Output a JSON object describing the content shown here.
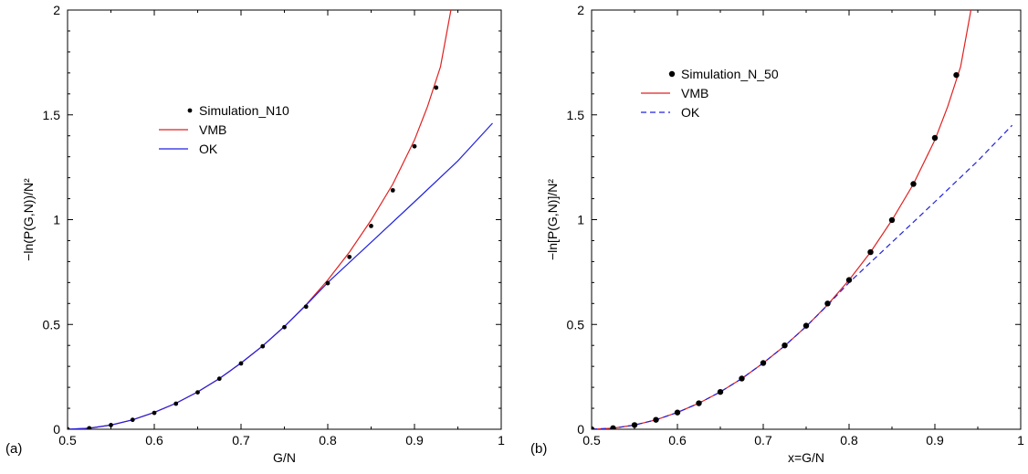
{
  "chart_data": [
    {
      "type": "line",
      "panel_label": "(a)",
      "xlabel": "G/N",
      "ylabel": "−ln(P(G,N))/N²",
      "xlim": [
        0.5,
        1.0
      ],
      "ylim": [
        0,
        2
      ],
      "x_ticks": [
        "0.5",
        "0.6",
        "0.7",
        "0.8",
        "0.9",
        "1"
      ],
      "y_ticks": [
        "0",
        "0.5",
        "1",
        "1.5",
        "2"
      ],
      "legend_placement": "upper-middle",
      "series": [
        {
          "name": "Simulation_N10",
          "kind": "points",
          "color": "#000000",
          "x": [
            0.5,
            0.525,
            0.55,
            0.575,
            0.6,
            0.625,
            0.65,
            0.675,
            0.7,
            0.725,
            0.75,
            0.775,
            0.8,
            0.825,
            0.85,
            0.875,
            0.9,
            0.925
          ],
          "y": [
            0.0,
            0.005,
            0.02,
            0.045,
            0.078,
            0.122,
            0.176,
            0.241,
            0.314,
            0.396,
            0.487,
            0.585,
            0.697,
            0.822,
            0.97,
            1.14,
            1.35,
            1.63
          ]
        },
        {
          "name": "VMB",
          "kind": "line",
          "color": "#e02020",
          "x": [
            0.5,
            0.525,
            0.55,
            0.575,
            0.6,
            0.625,
            0.65,
            0.675,
            0.7,
            0.725,
            0.75,
            0.775,
            0.8,
            0.825,
            0.85,
            0.875,
            0.9,
            0.915,
            0.93,
            0.942
          ],
          "y": [
            0.0,
            0.005,
            0.02,
            0.045,
            0.08,
            0.124,
            0.178,
            0.242,
            0.316,
            0.398,
            0.49,
            0.594,
            0.712,
            0.845,
            0.998,
            1.17,
            1.38,
            1.54,
            1.73,
            2.0
          ]
        },
        {
          "name": "OK",
          "kind": "line",
          "color": "#2020e0",
          "x": [
            0.5,
            0.525,
            0.55,
            0.575,
            0.6,
            0.625,
            0.65,
            0.675,
            0.7,
            0.725,
            0.75,
            0.775,
            0.8,
            0.85,
            0.9,
            0.95,
            0.99
          ],
          "y": [
            0.0,
            0.005,
            0.02,
            0.045,
            0.08,
            0.124,
            0.178,
            0.242,
            0.316,
            0.398,
            0.49,
            0.592,
            0.7,
            0.892,
            1.085,
            1.28,
            1.46
          ]
        }
      ]
    },
    {
      "type": "line",
      "panel_label": "(b)",
      "xlabel": "x=G/N",
      "ylabel": "−ln[P(G,N)]/N²",
      "xlim": [
        0.5,
        1.0
      ],
      "ylim": [
        0,
        2
      ],
      "x_ticks": [
        "0.5",
        "0.6",
        "0.7",
        "0.8",
        "0.9",
        "1"
      ],
      "y_ticks": [
        "0",
        "0.5",
        "1",
        "1.5",
        "2"
      ],
      "legend_placement": "top-left",
      "series": [
        {
          "name": "Simulation_N_50",
          "kind": "points",
          "color": "#000000",
          "x": [
            0.5,
            0.525,
            0.55,
            0.575,
            0.6,
            0.625,
            0.65,
            0.675,
            0.7,
            0.725,
            0.75,
            0.775,
            0.8,
            0.825,
            0.85,
            0.875,
            0.9,
            0.925
          ],
          "y": [
            0.0,
            0.005,
            0.02,
            0.045,
            0.08,
            0.124,
            0.178,
            0.242,
            0.316,
            0.4,
            0.494,
            0.6,
            0.712,
            0.845,
            0.998,
            1.17,
            1.39,
            1.69
          ]
        },
        {
          "name": "VMB",
          "kind": "line",
          "color": "#e02020",
          "x": [
            0.5,
            0.525,
            0.55,
            0.575,
            0.6,
            0.625,
            0.65,
            0.675,
            0.7,
            0.725,
            0.75,
            0.775,
            0.8,
            0.825,
            0.85,
            0.875,
            0.9,
            0.915,
            0.93,
            0.942
          ],
          "y": [
            0.0,
            0.005,
            0.02,
            0.045,
            0.08,
            0.124,
            0.178,
            0.242,
            0.316,
            0.398,
            0.49,
            0.594,
            0.712,
            0.845,
            0.998,
            1.17,
            1.38,
            1.54,
            1.73,
            2.0
          ]
        },
        {
          "name": "OK",
          "kind": "dashed-line",
          "color": "#2020e0",
          "x": [
            0.5,
            0.525,
            0.55,
            0.575,
            0.6,
            0.625,
            0.65,
            0.675,
            0.7,
            0.725,
            0.75,
            0.775,
            0.8,
            0.85,
            0.9,
            0.95,
            0.99
          ],
          "y": [
            0.0,
            0.005,
            0.02,
            0.045,
            0.08,
            0.124,
            0.178,
            0.242,
            0.316,
            0.398,
            0.49,
            0.592,
            0.7,
            0.892,
            1.085,
            1.28,
            1.45
          ]
        }
      ]
    }
  ]
}
